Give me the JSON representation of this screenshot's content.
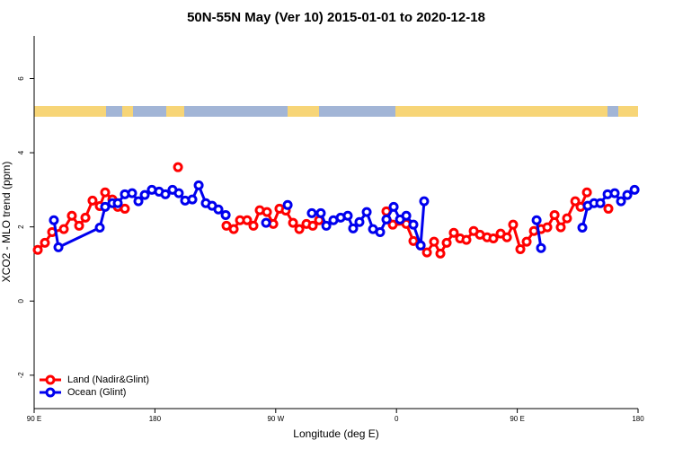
{
  "chart_data": {
    "type": "line",
    "title": "50N-55N May (Ver 10)   2015-01-01 to 2020-12-18",
    "x_label": "Longitude (deg E)",
    "y_label": "XCO2 - MLO trend (ppm)",
    "xlim": [
      90,
      540
    ],
    "xticks": [
      {
        "value": 90,
        "label": "90 E"
      },
      {
        "value": 180,
        "label": "180"
      },
      {
        "value": 270,
        "label": "90 W"
      },
      {
        "value": 360,
        "label": "0"
      },
      {
        "value": 450,
        "label": "90 E"
      },
      {
        "value": 540,
        "label": "180"
      }
    ],
    "ylim": [
      -2.9,
      7.15
    ],
    "yticks": [
      -2,
      0,
      2,
      4,
      6
    ],
    "legend": "bottom-left",
    "series": [
      {
        "name": "Land (Nadir&Glint)",
        "color": "#ff0000",
        "x": [
          92.7,
          98.0,
          103.4,
          112.1,
          118.1,
          123.5,
          128.2,
          133.5,
          138.9,
          142.9,
          148.3,
          152.3,
          157.6,
          null,
          197.2,
          null,
          233.3,
          238.7,
          243.4,
          248.7,
          253.4,
          258.1,
          263.5,
          268.2,
          272.8,
          277.5,
          282.9,
          287.6,
          292.9,
          297.6,
          302.3,
          null,
          352.5,
          357.2,
          367.3,
          372.6,
          378.0,
          382.7,
          388.0,
          392.7,
          397.4,
          402.7,
          407.4,
          412.1,
          417.5,
          422.2,
          427.5,
          432.2,
          437.6,
          442.3,
          446.9,
          452.3,
          457.0,
          462.4,
          467.7,
          472.4,
          477.8,
          482.4,
          487.1,
          493.2,
          497.2,
          501.9,
          null,
          517.9
        ],
        "values": [
          1.38,
          1.57,
          1.86,
          1.94,
          2.3,
          2.03,
          2.25,
          2.71,
          2.56,
          2.93,
          2.74,
          2.54,
          2.49,
          null,
          3.61,
          null,
          2.03,
          1.94,
          2.18,
          2.18,
          2.03,
          2.45,
          2.4,
          2.08,
          2.49,
          2.44,
          2.11,
          1.94,
          2.08,
          2.03,
          2.18,
          null,
          2.42,
          2.06,
          2.08,
          1.62,
          1.5,
          1.31,
          1.6,
          1.28,
          1.57,
          1.84,
          1.69,
          1.65,
          1.89,
          1.79,
          1.72,
          1.69,
          1.82,
          1.72,
          2.06,
          1.4,
          1.6,
          1.89,
          1.94,
          1.99,
          2.32,
          1.99,
          2.23,
          2.69,
          2.54,
          2.93,
          null,
          2.49
        ]
      },
      {
        "name": "Ocean (Glint)",
        "color": "#0000ee",
        "x": [
          104.7,
          108.1,
          138.9,
          142.9,
          148.3,
          152.3,
          157.6,
          163.0,
          167.7,
          172.4,
          177.7,
          183.1,
          187.8,
          193.1,
          197.8,
          202.5,
          207.9,
          212.6,
          217.9,
          222.6,
          227.3,
          232.7,
          null,
          262.8,
          null,
          278.9,
          null,
          296.9,
          303.6,
          307.7,
          313.0,
          318.4,
          323.7,
          327.7,
          332.4,
          337.8,
          342.5,
          347.8,
          352.5,
          357.9,
          362.6,
          367.3,
          372.6,
          378.0,
          380.6,
          null,
          464.4,
          467.7,
          null,
          498.5,
          502.5,
          507.2,
          511.9,
          517.3,
          522.6,
          527.3,
          532.0,
          537.4
        ],
        "values": [
          2.18,
          1.45,
          1.98,
          2.54,
          2.64,
          2.64,
          2.88,
          2.91,
          2.69,
          2.86,
          3.0,
          2.95,
          2.88,
          3.0,
          2.91,
          2.71,
          2.74,
          3.12,
          2.64,
          2.57,
          2.47,
          2.32,
          null,
          2.11,
          null,
          2.59,
          null,
          2.37,
          2.37,
          2.03,
          2.18,
          2.25,
          2.3,
          1.96,
          2.13,
          2.4,
          1.94,
          1.86,
          2.2,
          2.54,
          2.2,
          2.3,
          2.06,
          1.5,
          2.69,
          null,
          2.18,
          1.43,
          null,
          1.98,
          2.57,
          2.64,
          2.64,
          2.88,
          2.91,
          2.69,
          2.86,
          3.0
        ]
      }
    ]
  }
}
